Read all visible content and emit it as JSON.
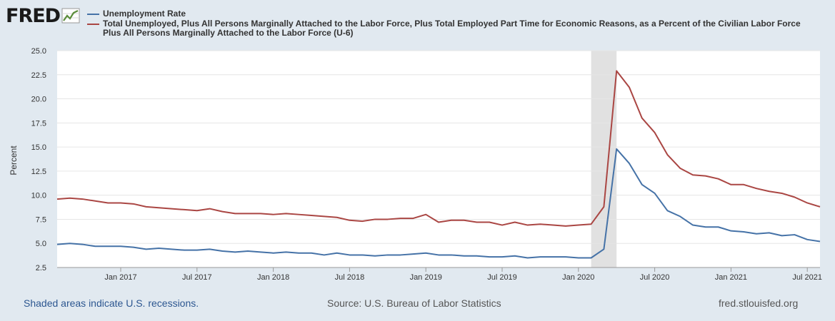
{
  "logo": {
    "text": "FRED"
  },
  "legend": {
    "series": [
      {
        "name": "Unemployment Rate",
        "color": "#4572a7"
      },
      {
        "name": "Total Unemployed, Plus All Persons Marginally Attached to the Labor Force, Plus Total Employed Part Time for Economic Reasons, as a Percent of the Civilian Labor Force Plus All Persons Marginally Attached to the Labor Force (U-6)",
        "color": "#aa4643"
      }
    ]
  },
  "footer": {
    "recession_note": "Shaded areas indicate U.S. recessions.",
    "source": "Source: U.S. Bureau of Labor Statistics",
    "site": "fred.stlouisfed.org"
  },
  "chart_data": {
    "type": "line",
    "ylabel": "Percent",
    "ylim": [
      2.5,
      25.0
    ],
    "yticks": [
      "2.5",
      "5.0",
      "7.5",
      "10.0",
      "12.5",
      "15.0",
      "17.5",
      "20.0",
      "22.5",
      "25.0"
    ],
    "xrange": [
      "2016-08",
      "2021-08"
    ],
    "xticks": [
      {
        "label": "Jan 2017",
        "date": "2017-01"
      },
      {
        "label": "Jul 2017",
        "date": "2017-07"
      },
      {
        "label": "Jan 2018",
        "date": "2018-01"
      },
      {
        "label": "Jul 2018",
        "date": "2018-07"
      },
      {
        "label": "Jan 2019",
        "date": "2019-01"
      },
      {
        "label": "Jul 2019",
        "date": "2019-07"
      },
      {
        "label": "Jan 2020",
        "date": "2020-01"
      },
      {
        "label": "Jul 2020",
        "date": "2020-07"
      },
      {
        "label": "Jan 2021",
        "date": "2021-01"
      },
      {
        "label": "Jul 2021",
        "date": "2021-07"
      }
    ],
    "recession": {
      "start": "2020-02",
      "end": "2020-04"
    },
    "grid": true,
    "legend_position": "top",
    "x": [
      "2016-08",
      "2016-09",
      "2016-10",
      "2016-11",
      "2016-12",
      "2017-01",
      "2017-02",
      "2017-03",
      "2017-04",
      "2017-05",
      "2017-06",
      "2017-07",
      "2017-08",
      "2017-09",
      "2017-10",
      "2017-11",
      "2017-12",
      "2018-01",
      "2018-02",
      "2018-03",
      "2018-04",
      "2018-05",
      "2018-06",
      "2018-07",
      "2018-08",
      "2018-09",
      "2018-10",
      "2018-11",
      "2018-12",
      "2019-01",
      "2019-02",
      "2019-03",
      "2019-04",
      "2019-05",
      "2019-06",
      "2019-07",
      "2019-08",
      "2019-09",
      "2019-10",
      "2019-11",
      "2019-12",
      "2020-01",
      "2020-02",
      "2020-03",
      "2020-04",
      "2020-05",
      "2020-06",
      "2020-07",
      "2020-08",
      "2020-09",
      "2020-10",
      "2020-11",
      "2020-12",
      "2021-01",
      "2021-02",
      "2021-03",
      "2021-04",
      "2021-05",
      "2021-06",
      "2021-07",
      "2021-08"
    ],
    "series": [
      {
        "name": "Unemployment Rate",
        "color": "#4572a7",
        "values": [
          4.9,
          5.0,
          4.9,
          4.7,
          4.7,
          4.7,
          4.6,
          4.4,
          4.5,
          4.4,
          4.3,
          4.3,
          4.4,
          4.2,
          4.1,
          4.2,
          4.1,
          4.0,
          4.1,
          4.0,
          4.0,
          3.8,
          4.0,
          3.8,
          3.8,
          3.7,
          3.8,
          3.8,
          3.9,
          4.0,
          3.8,
          3.8,
          3.7,
          3.7,
          3.6,
          3.6,
          3.7,
          3.5,
          3.6,
          3.6,
          3.6,
          3.5,
          3.5,
          4.4,
          14.8,
          13.3,
          11.1,
          10.2,
          8.4,
          7.8,
          6.9,
          6.7,
          6.7,
          6.3,
          6.2,
          6.0,
          6.1,
          5.8,
          5.9,
          5.4,
          5.2
        ]
      },
      {
        "name": "Total Unemployed, Plus All Persons Marginally Attached to the Labor Force, Plus Total Employed Part Time for Economic Reasons, as a Percent of the Civilian Labor Force Plus All Persons Marginally Attached to the Labor Force (U-6)",
        "color": "#aa4643",
        "values": [
          9.6,
          9.7,
          9.6,
          9.4,
          9.2,
          9.2,
          9.1,
          8.8,
          8.7,
          8.6,
          8.5,
          8.4,
          8.6,
          8.3,
          8.1,
          8.1,
          8.1,
          8.0,
          8.1,
          8.0,
          7.9,
          7.8,
          7.7,
          7.4,
          7.3,
          7.5,
          7.5,
          7.6,
          7.6,
          8.0,
          7.2,
          7.4,
          7.4,
          7.2,
          7.2,
          6.9,
          7.2,
          6.9,
          7.0,
          6.9,
          6.8,
          6.9,
          7.0,
          8.8,
          22.9,
          21.2,
          18.0,
          16.5,
          14.2,
          12.8,
          12.1,
          12.0,
          11.7,
          11.1,
          11.1,
          10.7,
          10.4,
          10.2,
          9.8,
          9.2,
          8.8
        ]
      }
    ]
  }
}
